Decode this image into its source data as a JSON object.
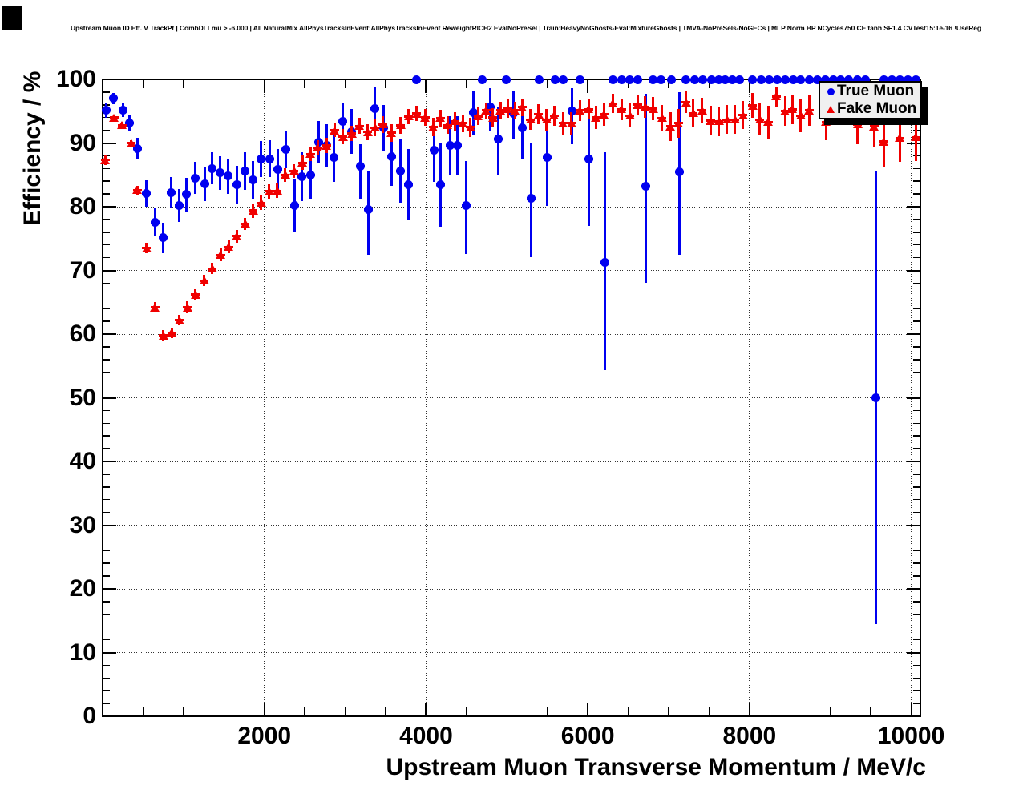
{
  "window": {
    "background": "#ffffff",
    "corner_block_color": "#000000"
  },
  "colors": {
    "frame": "#000000",
    "grid": "#333333",
    "true_muon": "#0000f0",
    "fake_muon": "#f00000",
    "legend_bg": "#f0f0f0",
    "legend_shadow": "#000000"
  },
  "legend": {
    "items": [
      {
        "label": "True Muon",
        "marker": "circle-icon",
        "color": "#0000f0"
      },
      {
        "label": "Fake Muon",
        "marker": "triangle-icon",
        "color": "#f00000"
      }
    ]
  },
  "chart_data": {
    "type": "scatter",
    "title": "Upstream Muon ID Eff. V TrackPt | CombDLLmu > -6.000 | All NaturalMix AllPhysTracksInEvent:AllPhysTracksInEvent ReweightRICH2 EvalNoPreSel | Train:HeavyNoGhosts-Eval:MixtureGhosts | TMVA-NoPreSels-NoGECs | MLP Norm BP NCycles750 CE tanh SF1.4 CVTest15:1e-16 !UseReg",
    "xlabel": "Upstream Muon Transverse Momentum / MeV/c",
    "ylabel": "Efficiency / %",
    "xlim": [
      0,
      10113
    ],
    "ylim": [
      0,
      100
    ],
    "grid": true,
    "legend_position": "top-right",
    "x_major_ticks": [
      2000,
      4000,
      6000,
      8000,
      10000
    ],
    "x_tick_labels": [
      "2000",
      "4000",
      "6000",
      "8000",
      "10000"
    ],
    "x_minor_step": 500,
    "y_major_step": 10,
    "y_minor_step": 2,
    "y_tick_labels": [
      "0",
      "10",
      "20",
      "30",
      "40",
      "50",
      "60",
      "70",
      "80",
      "90",
      "100"
    ],
    "points_format": [
      "pt_mev",
      "efficiency_pct",
      "err_low_pct",
      "err_high_pct"
    ],
    "series": [
      {
        "name": "True Muon",
        "marker": "circle",
        "color": "#0000f0",
        "points": [
          [
            45,
            95.1,
            1.2,
            1.2
          ],
          [
            135,
            97.0,
            0.9,
            0.9
          ],
          [
            255,
            95.2,
            1.1,
            1.1
          ],
          [
            330,
            93.2,
            1.3,
            1.3
          ],
          [
            435,
            89.1,
            1.7,
            1.7
          ],
          [
            540,
            82.1,
            2.1,
            2.1
          ],
          [
            645,
            77.6,
            2.3,
            2.3
          ],
          [
            750,
            75.1,
            2.4,
            2.4
          ],
          [
            845,
            82.2,
            2.4,
            2.4
          ],
          [
            945,
            80.2,
            2.6,
            2.6
          ],
          [
            1040,
            81.9,
            2.6,
            2.6
          ],
          [
            1145,
            84.5,
            2.5,
            2.5
          ],
          [
            1265,
            83.6,
            2.7,
            2.7
          ],
          [
            1355,
            86.0,
            2.5,
            2.5
          ],
          [
            1455,
            85.3,
            2.6,
            2.6
          ],
          [
            1555,
            84.8,
            2.8,
            2.8
          ],
          [
            1660,
            83.4,
            3.0,
            3.0
          ],
          [
            1760,
            85.6,
            2.9,
            2.9
          ],
          [
            1860,
            84.2,
            3.0,
            3.0
          ],
          [
            1960,
            87.5,
            2.8,
            2.8
          ],
          [
            2065,
            87.5,
            2.9,
            2.9
          ],
          [
            2170,
            85.9,
            3.2,
            3.2
          ],
          [
            2265,
            89.0,
            3.0,
            3.0
          ],
          [
            2375,
            80.2,
            4.1,
            4.1
          ],
          [
            2465,
            84.7,
            3.8,
            3.8
          ],
          [
            2570,
            85.0,
            3.8,
            3.8
          ],
          [
            2670,
            90.1,
            3.3,
            3.3
          ],
          [
            2775,
            89.6,
            3.4,
            3.4
          ],
          [
            2865,
            87.7,
            3.8,
            3.8
          ],
          [
            2965,
            93.4,
            3.0,
            3.0
          ],
          [
            3075,
            91.8,
            3.5,
            3.5
          ],
          [
            3185,
            86.3,
            5.0,
            3.5
          ],
          [
            3285,
            79.5,
            7.0,
            6.0
          ],
          [
            3370,
            95.4,
            3.3,
            3.4
          ],
          [
            3480,
            92.4,
            3.6,
            3.6
          ],
          [
            3570,
            87.9,
            4.6,
            4.6
          ],
          [
            3685,
            85.6,
            5.0,
            5.0
          ],
          [
            3780,
            83.5,
            5.6,
            5.6
          ],
          [
            3880,
            100,
            0,
            0
          ],
          [
            4095,
            88.9,
            5.0,
            5.0
          ],
          [
            4180,
            83.4,
            6.6,
            6.6
          ],
          [
            4300,
            89.6,
            4.6,
            4.6
          ],
          [
            4390,
            89.6,
            4.6,
            4.6
          ],
          [
            4495,
            80.2,
            7.6,
            7.0
          ],
          [
            4585,
            94.8,
            3.6,
            3.5
          ],
          [
            4695,
            100,
            0,
            0
          ],
          [
            4795,
            95.6,
            3.6,
            3.0
          ],
          [
            4895,
            90.6,
            5.6,
            5.0
          ],
          [
            4990,
            100,
            0,
            0
          ],
          [
            5080,
            94.6,
            4.0,
            3.6
          ],
          [
            5195,
            92.4,
            5.0,
            4.6
          ],
          [
            5295,
            81.3,
            9.2,
            8.6
          ],
          [
            5395,
            100,
            0,
            0
          ],
          [
            5495,
            87.7,
            7.6,
            7.0
          ],
          [
            5595,
            100,
            0,
            0
          ],
          [
            5695,
            100,
            0,
            0
          ],
          [
            5810,
            95.0,
            5.2,
            3.6
          ],
          [
            5900,
            100,
            0,
            0
          ],
          [
            6010,
            87.5,
            10.5,
            8.0
          ],
          [
            6215,
            71.3,
            17.0,
            17.3
          ],
          [
            6315,
            100,
            0,
            0
          ],
          [
            6415,
            100,
            0,
            0
          ],
          [
            6520,
            100,
            0,
            0
          ],
          [
            6620,
            100,
            0,
            0
          ],
          [
            6720,
            83.2,
            15.1,
            14.5
          ],
          [
            6810,
            100,
            0,
            0
          ],
          [
            6910,
            100,
            0,
            0
          ],
          [
            7030,
            100,
            0,
            0
          ],
          [
            7130,
            85.5,
            13.0,
            12.5
          ],
          [
            7215,
            100,
            0,
            0
          ],
          [
            7320,
            100,
            0,
            0
          ],
          [
            7420,
            100,
            0,
            0
          ],
          [
            7535,
            100,
            0,
            0
          ],
          [
            7620,
            100,
            0,
            0
          ],
          [
            7700,
            100,
            0,
            0
          ],
          [
            7785,
            100,
            0,
            0
          ],
          [
            7875,
            100,
            0,
            0
          ],
          [
            8040,
            100,
            0,
            0
          ],
          [
            8140,
            100,
            0,
            0
          ],
          [
            8240,
            100,
            0,
            0
          ],
          [
            8340,
            100,
            0,
            0
          ],
          [
            8440,
            100,
            0,
            0
          ],
          [
            8540,
            100,
            0,
            0
          ],
          [
            8635,
            100,
            0,
            0
          ],
          [
            8735,
            100,
            0,
            0
          ],
          [
            8835,
            100,
            0,
            0
          ],
          [
            8935,
            100,
            0,
            0
          ],
          [
            9035,
            100,
            0,
            0
          ],
          [
            9130,
            100,
            0,
            0
          ],
          [
            9230,
            100,
            0,
            0
          ],
          [
            9330,
            100,
            0,
            0
          ],
          [
            9430,
            100,
            0,
            0
          ],
          [
            9560,
            50.0,
            35.5,
            35.5
          ],
          [
            9660,
            100,
            0,
            0
          ],
          [
            9760,
            100,
            0,
            0
          ],
          [
            9860,
            100,
            0,
            0
          ],
          [
            9960,
            100,
            0,
            0
          ],
          [
            10055,
            100,
            0,
            0
          ]
        ]
      },
      {
        "name": "Fake Muon",
        "marker": "triangle",
        "color": "#f00000",
        "points": [
          [
            30,
            87.3,
            0.8,
            0.8
          ],
          [
            140,
            94.0,
            0.5,
            0.5
          ],
          [
            240,
            92.8,
            0.5,
            0.5
          ],
          [
            355,
            90.0,
            0.5,
            0.5
          ],
          [
            430,
            82.6,
            0.7,
            0.7
          ],
          [
            545,
            73.5,
            0.8,
            0.8
          ],
          [
            645,
            64.2,
            0.8,
            0.8
          ],
          [
            750,
            59.8,
            0.8,
            0.8
          ],
          [
            855,
            60.2,
            0.8,
            0.8
          ],
          [
            950,
            62.2,
            0.8,
            0.8
          ],
          [
            1050,
            64.2,
            0.9,
            0.9
          ],
          [
            1150,
            66.2,
            0.9,
            0.9
          ],
          [
            1255,
            68.4,
            0.9,
            0.9
          ],
          [
            1355,
            70.3,
            0.9,
            0.9
          ],
          [
            1460,
            72.4,
            1.0,
            1.0
          ],
          [
            1560,
            73.7,
            1.0,
            1.0
          ],
          [
            1660,
            75.4,
            1.0,
            1.0
          ],
          [
            1760,
            77.3,
            1.0,
            1.0
          ],
          [
            1860,
            79.4,
            1.1,
            1.1
          ],
          [
            1960,
            80.6,
            1.1,
            1.1
          ],
          [
            2060,
            82.4,
            1.1,
            1.1
          ],
          [
            2160,
            82.5,
            1.1,
            1.1
          ],
          [
            2260,
            85.0,
            1.1,
            1.1
          ],
          [
            2365,
            85.6,
            1.1,
            1.1
          ],
          [
            2470,
            86.9,
            1.1,
            1.1
          ],
          [
            2570,
            88.3,
            1.1,
            1.1
          ],
          [
            2660,
            89.3,
            1.1,
            1.1
          ],
          [
            2770,
            89.6,
            1.2,
            1.2
          ],
          [
            2870,
            92.0,
            1.1,
            1.1
          ],
          [
            2970,
            91.0,
            1.2,
            1.2
          ],
          [
            3080,
            91.5,
            1.2,
            1.2
          ],
          [
            3175,
            92.7,
            1.2,
            1.2
          ],
          [
            3280,
            91.7,
            1.3,
            1.3
          ],
          [
            3370,
            92.4,
            1.3,
            1.3
          ],
          [
            3470,
            92.9,
            1.3,
            1.3
          ],
          [
            3570,
            91.6,
            1.4,
            1.4
          ],
          [
            3685,
            92.8,
            1.3,
            1.3
          ],
          [
            3785,
            94.2,
            1.2,
            1.2
          ],
          [
            3885,
            94.6,
            1.2,
            1.2
          ],
          [
            3990,
            94.0,
            1.3,
            1.3
          ],
          [
            4085,
            92.5,
            1.4,
            1.4
          ],
          [
            4175,
            93.9,
            1.3,
            1.3
          ],
          [
            4265,
            92.8,
            1.4,
            1.4
          ],
          [
            4355,
            93.4,
            1.4,
            1.4
          ],
          [
            4455,
            93.1,
            1.4,
            1.4
          ],
          [
            4550,
            92.5,
            1.5,
            1.5
          ],
          [
            4645,
            94.2,
            1.4,
            1.4
          ],
          [
            4740,
            95.1,
            1.3,
            1.3
          ],
          [
            4825,
            94.0,
            1.5,
            1.5
          ],
          [
            4920,
            95.1,
            1.4,
            1.4
          ],
          [
            5010,
            95.4,
            1.4,
            1.4
          ],
          [
            5100,
            95.1,
            1.4,
            1.4
          ],
          [
            5190,
            95.6,
            1.4,
            1.4
          ],
          [
            5290,
            93.7,
            1.6,
            1.6
          ],
          [
            5390,
            94.5,
            1.6,
            1.6
          ],
          [
            5490,
            93.7,
            1.7,
            1.7
          ],
          [
            5585,
            94.3,
            1.6,
            1.6
          ],
          [
            5695,
            93.1,
            1.8,
            1.8
          ],
          [
            5800,
            93.1,
            1.8,
            1.8
          ],
          [
            5900,
            95.1,
            1.6,
            1.6
          ],
          [
            6010,
            95.3,
            1.6,
            1.6
          ],
          [
            6100,
            94.0,
            1.8,
            1.8
          ],
          [
            6200,
            94.5,
            1.8,
            1.8
          ],
          [
            6310,
            96.2,
            1.5,
            1.5
          ],
          [
            6415,
            95.3,
            1.7,
            1.7
          ],
          [
            6520,
            94.3,
            1.9,
            1.9
          ],
          [
            6615,
            96.0,
            1.6,
            1.6
          ],
          [
            6710,
            95.7,
            1.7,
            1.7
          ],
          [
            6810,
            95.4,
            1.8,
            1.8
          ],
          [
            6920,
            93.9,
            2.1,
            2.1
          ],
          [
            7020,
            92.6,
            2.3,
            2.3
          ],
          [
            7120,
            93.1,
            2.3,
            2.3
          ],
          [
            7215,
            96.4,
            1.7,
            1.7
          ],
          [
            7305,
            94.7,
            2.1,
            2.1
          ],
          [
            7415,
            95.1,
            2.0,
            2.0
          ],
          [
            7520,
            93.5,
            2.3,
            2.3
          ],
          [
            7620,
            93.4,
            2.3,
            2.3
          ],
          [
            7720,
            93.7,
            2.3,
            2.3
          ],
          [
            7820,
            93.7,
            2.3,
            2.3
          ],
          [
            7920,
            94.4,
            2.2,
            2.2
          ],
          [
            8040,
            95.9,
            1.9,
            1.9
          ],
          [
            8130,
            93.7,
            2.5,
            2.5
          ],
          [
            8230,
            93.3,
            2.6,
            2.6
          ],
          [
            8330,
            97.3,
            1.6,
            1.6
          ],
          [
            8440,
            95.0,
            2.3,
            2.3
          ],
          [
            8530,
            95.3,
            2.3,
            2.3
          ],
          [
            8635,
            94.3,
            2.6,
            2.6
          ],
          [
            8735,
            95.1,
            2.4,
            2.4
          ],
          [
            8945,
            93.3,
            2.9,
            2.9
          ],
          [
            9335,
            92.9,
            3.1,
            3.1
          ],
          [
            9540,
            92.6,
            3.3,
            3.3
          ],
          [
            9660,
            90.2,
            3.9,
            3.9
          ],
          [
            9860,
            90.8,
            3.7,
            3.7
          ],
          [
            10055,
            90.9,
            3.7,
            3.7
          ]
        ]
      }
    ]
  }
}
